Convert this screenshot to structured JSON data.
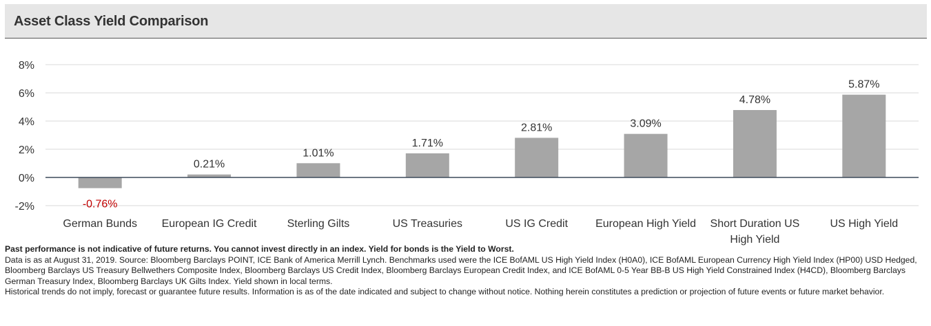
{
  "header": {
    "title": "Asset Class Yield Comparison"
  },
  "chart_data": {
    "type": "bar",
    "title": "Asset Class Yield Comparison",
    "categories": [
      "German Bunds",
      "European IG Credit",
      "Sterling Gilts",
      "US Treasuries",
      "US IG Credit",
      "European High Yield",
      "Short Duration US High Yield",
      "US High Yield"
    ],
    "category_lines": [
      [
        "German Bunds"
      ],
      [
        "European IG Credit"
      ],
      [
        "Sterling Gilts"
      ],
      [
        "US Treasuries"
      ],
      [
        "US IG Credit"
      ],
      [
        "European High Yield"
      ],
      [
        "Short Duration US",
        "High Yield"
      ],
      [
        "US High Yield"
      ]
    ],
    "values": [
      -0.76,
      0.21,
      1.01,
      1.71,
      2.81,
      3.09,
      4.78,
      5.87
    ],
    "value_labels": [
      "-0.76%",
      "0.21%",
      "1.01%",
      "1.71%",
      "2.81%",
      "3.09%",
      "4.78%",
      "5.87%"
    ],
    "ylim": [
      -2,
      8
    ],
    "yticks": [
      -2,
      0,
      2,
      4,
      6,
      8
    ],
    "ytick_labels": [
      "-2%",
      "0%",
      "2%",
      "4%",
      "6%",
      "8%"
    ],
    "xlabel": "",
    "ylabel": "",
    "grid": true,
    "legend": "none",
    "colors": {
      "bar": "#a6a6a6",
      "negative_label": "#c00000",
      "label": "#333333",
      "grid": "#d9d9d9",
      "zero_line": "#3b4a5a"
    }
  },
  "footnotes": {
    "disclaimer": "Past performance is not indicative of future returns. You cannot invest directly in an index. Yield for bonds is the Yield to Worst.",
    "sources": "Data is as at August 31, 2019. Source: Bloomberg Barclays POINT, ICE Bank of America Merrill Lynch.  Benchmarks used were the ICE BofAML US High Yield Index (H0A0), ICE BofAML European Currency High Yield Index (HP00) USD Hedged, Bloomberg Barclays US Treasury Bellwethers Composite Index, Bloomberg Barclays US Credit Index, Bloomberg Barclays European Credit Index, and ICE BofAML 0-5 Year BB-B US High Yield Constrained Index (H4CD), Bloomberg Barclays German Treasury Index, Bloomberg Barclays UK Gilts Index. Yield shown in local terms.",
    "historical": "Historical trends do not imply, forecast or guarantee future results. Information is as of the date indicated and subject to change without notice. Nothing herein constitutes a prediction or projection of future events or future market behavior."
  }
}
